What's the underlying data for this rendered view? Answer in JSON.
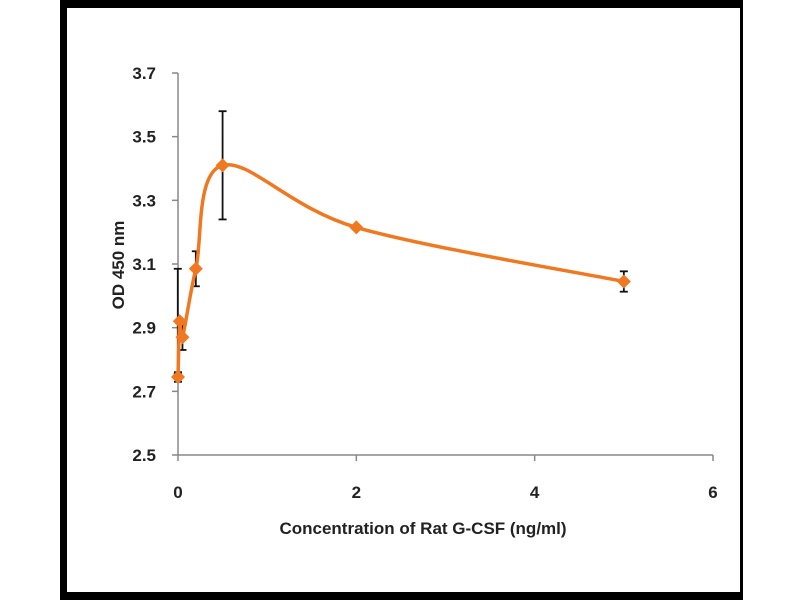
{
  "chart_data": {
    "type": "line",
    "title": "",
    "xlabel": "Concentration of Rat G-CSF (ng/ml)",
    "ylabel": "OD 450 nm",
    "xlim": [
      0,
      6
    ],
    "ylim": [
      2.5,
      3.7
    ],
    "xticks": [
      "0",
      "2",
      "4",
      "6"
    ],
    "yticks": [
      "2.5",
      "2.7",
      "2.9",
      "3.1",
      "3.3",
      "3.5",
      "3.7"
    ],
    "grid": false,
    "legend": "none",
    "series": [
      {
        "name": "Rat G-CSF",
        "color": "#f07820",
        "marker": "diamond",
        "x": [
          0,
          0.02,
          0.05,
          0.2,
          0.5,
          2,
          5
        ],
        "y": [
          2.745,
          2.92,
          2.87,
          3.085,
          3.41,
          3.215,
          3.045
        ],
        "err": [
          0.015,
          0.165,
          0.04,
          0.055,
          0.17,
          0.005,
          0.032
        ]
      }
    ]
  }
}
